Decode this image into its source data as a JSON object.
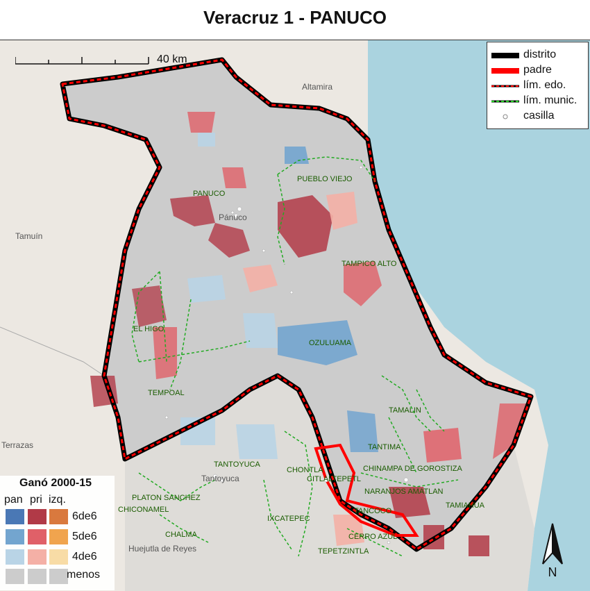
{
  "title": "Veracruz 1 - PANUCO",
  "scale_label": "40 km",
  "legend": {
    "items": [
      {
        "label": "distrito",
        "color": "#000000"
      },
      {
        "label": "padre",
        "color": "#ff0000"
      },
      {
        "label": "lím. edo.",
        "color": "#000000",
        "accent": "#ff0000"
      },
      {
        "label": "lím. munic.",
        "color": "#000000",
        "accent": "#22cc22"
      },
      {
        "label": "casilla",
        "color": "#888888"
      }
    ]
  },
  "win_legend": {
    "title": "Ganó 2000-15",
    "headers": [
      "pan",
      "pri",
      "izq."
    ],
    "rows": [
      "6de6",
      "5de6",
      "4de6",
      "menos"
    ],
    "colors": {
      "pan": [
        "#4a78b5",
        "#73a5cf",
        "#b9d4e6",
        "#cccccc"
      ],
      "pri": [
        "#b13a47",
        "#e06068",
        "#f4b0a6",
        "#cccccc"
      ],
      "izq": [
        "#d9793e",
        "#f0a44e",
        "#f8dca6",
        "#cccccc"
      ]
    }
  },
  "places": {
    "altamira": "Altamira",
    "tamuin": "Tamuín",
    "terrazas": "Terrazas",
    "huejutla": "Huejutla de Reyes",
    "panuco_town": "Pánuco",
    "tantoyuca_town": "Tantoyuca"
  },
  "municipalities": [
    "PANUCO",
    "PUEBLO VIEJO",
    "TAMPICO ALTO",
    "EL HIGO",
    "OZULUAMA",
    "TEMPOAL",
    "TAMALIN",
    "TANTIMA",
    "TANTOYUCA",
    "CHONTLA",
    "CITLALTEPETL",
    "CHINAMPA DE GOROSTIZA",
    "NARANJOS AMATLAN",
    "PLATON SANCHEZ",
    "CHICONAMEL",
    "TANCOCO",
    "TAMIAHUA",
    "IXCATEPEC",
    "CHALMA",
    "CERRO AZUL",
    "TEPETZINTLA"
  ],
  "north_label": "N",
  "colors": {
    "water": "#aad3df",
    "land": "#ece8e2",
    "district": "#000000",
    "parent": "#ff0000",
    "muni_border": "#22cc22"
  }
}
